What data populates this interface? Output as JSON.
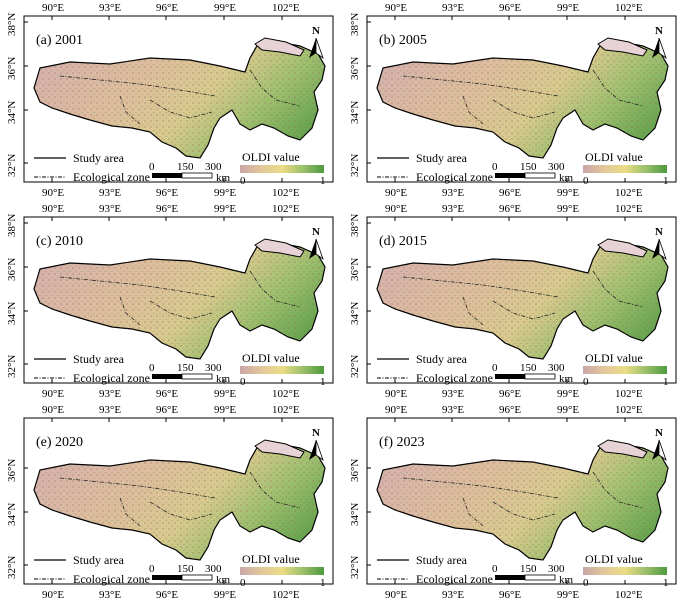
{
  "shared": {
    "lon_labels": [
      "90°E",
      "93°E",
      "96°E",
      "99°E",
      "102°E"
    ],
    "lat_labels": [
      "32°N",
      "34°N",
      "36°N",
      "38°N"
    ],
    "north_label": "N",
    "legend": {
      "study_area": "Study area",
      "ecological_zone": "Ecological zone",
      "colorbar_title": "OLDI value",
      "colorbar_min": "0",
      "colorbar_max": "1",
      "colorbar_colors": [
        "#c9a6a8",
        "#e2c79b",
        "#ecdc87",
        "#9bbf6a",
        "#4e9a3f"
      ],
      "scalebar_ticks": [
        "0",
        "150",
        "300"
      ],
      "scalebar_unit": "km"
    }
  },
  "panels": [
    {
      "label": "(a) 2001"
    },
    {
      "label": "(b) 2005"
    },
    {
      "label": "(c) 2010"
    },
    {
      "label": "(d) 2015"
    },
    {
      "label": "(e) 2020"
    },
    {
      "label": "(f) 2023"
    }
  ]
}
